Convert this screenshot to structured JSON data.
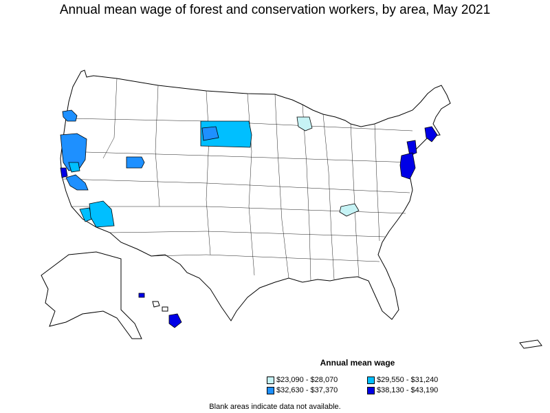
{
  "title": "Annual mean wage of forest and conservation workers, by area, May 2021",
  "legend": {
    "title": "Annual mean wage",
    "items": [
      {
        "label": "$23,090 - $28,070",
        "color": "#c6f3f5"
      },
      {
        "label": "$29,550 - $31,240",
        "color": "#00bfff"
      },
      {
        "label": "$32,630 - $37,370",
        "color": "#1e90ff"
      },
      {
        "label": "$38,130 - $43,190",
        "color": "#0000e6"
      }
    ]
  },
  "footnote": "Blank areas indicate data not available.",
  "colors": {
    "tier1": "#c6f3f5",
    "tier2": "#00bfff",
    "tier3": "#1e90ff",
    "tier4": "#0000e6",
    "no_data": "#ffffff",
    "border": "#000000"
  }
}
